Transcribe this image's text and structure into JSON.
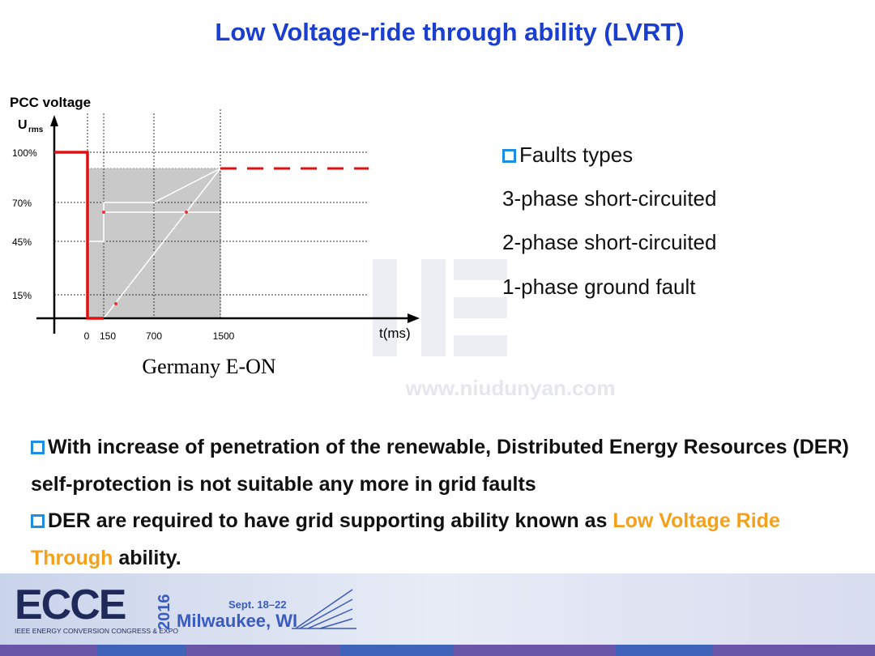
{
  "title": "Low Voltage-ride through ability (LVRT)",
  "figure": {
    "y_label": "PCC voltage",
    "y_symbol": "U",
    "y_subscript": "rms",
    "x_label": "t(ms)",
    "caption": "Germany E-ON",
    "y_ticks": [
      "100%",
      "70%",
      "45%",
      "15%"
    ],
    "x_ticks": [
      "0",
      "150",
      "700",
      "1500"
    ]
  },
  "faults": {
    "heading": "Faults types",
    "items": [
      "3-phase short-circuited",
      "2-phase short-circuited",
      "1-phase ground fault"
    ]
  },
  "bullets": [
    {
      "text": "With increase of penetration of the renewable, Distributed Energy Resources (DER) self-protection is not suitable any more in grid faults"
    },
    {
      "text": "DER are required to have grid supporting ability known as",
      "highlight": "Low Voltage Ride Through",
      "tail": "ability."
    }
  ],
  "watermark": "www.niudunyan.com",
  "footer": {
    "logo": "ECCE",
    "year": "2016",
    "dates": "Sept. 18–22",
    "city": "Milwaukee, WI",
    "org": "IEEE ENERGY CONVERSION CONGRESS & EXPO"
  }
}
